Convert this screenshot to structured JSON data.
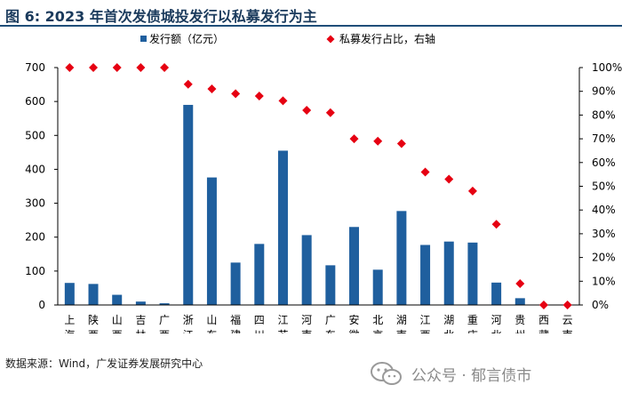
{
  "title": "图 6:  2023 年首次发债城投发行以私募发行为主",
  "source": "数据来源：Wind，广发证券发展研究中心",
  "watermark": "公众号 · 郁言债市",
  "colors": {
    "bar": "#1f5f9e",
    "marker": "#e60012",
    "title": "#1a3a5c",
    "rule": "#1f4e79"
  },
  "chart_data": {
    "type": "bar",
    "categories": [
      "上海",
      "陕西",
      "山西",
      "吉林",
      "广西",
      "浙江",
      "山东",
      "福建",
      "四川",
      "江苏",
      "河南",
      "广东",
      "安徽",
      "北京",
      "湖南",
      "江西",
      "湖北",
      "重庆",
      "河北",
      "贵州",
      "西藏",
      "云南"
    ],
    "series": [
      {
        "name": "发行额（亿元）",
        "type": "bar",
        "axis": "left",
        "values": [
          65,
          62,
          30,
          10,
          5,
          590,
          376,
          125,
          180,
          455,
          206,
          117,
          230,
          104,
          277,
          177,
          187,
          184,
          66,
          20,
          0,
          0
        ]
      },
      {
        "name": "私募发行占比，右轴",
        "type": "scatter",
        "axis": "right",
        "values": [
          100,
          100,
          100,
          100,
          100,
          93,
          91,
          89,
          88,
          86,
          82,
          81,
          70,
          69,
          68,
          56,
          53,
          48,
          34,
          9,
          0,
          0
        ]
      }
    ],
    "left_axis": {
      "min": 0,
      "max": 700,
      "ticks": [
        "0",
        "100",
        "200",
        "300",
        "400",
        "500",
        "600",
        "700"
      ]
    },
    "right_axis": {
      "min": 0,
      "max": 100,
      "ticks": [
        "0%",
        "10%",
        "20%",
        "30%",
        "40%",
        "50%",
        "60%",
        "70%",
        "80%",
        "90%",
        "100%"
      ]
    },
    "legend_position": "top",
    "grid": false
  }
}
